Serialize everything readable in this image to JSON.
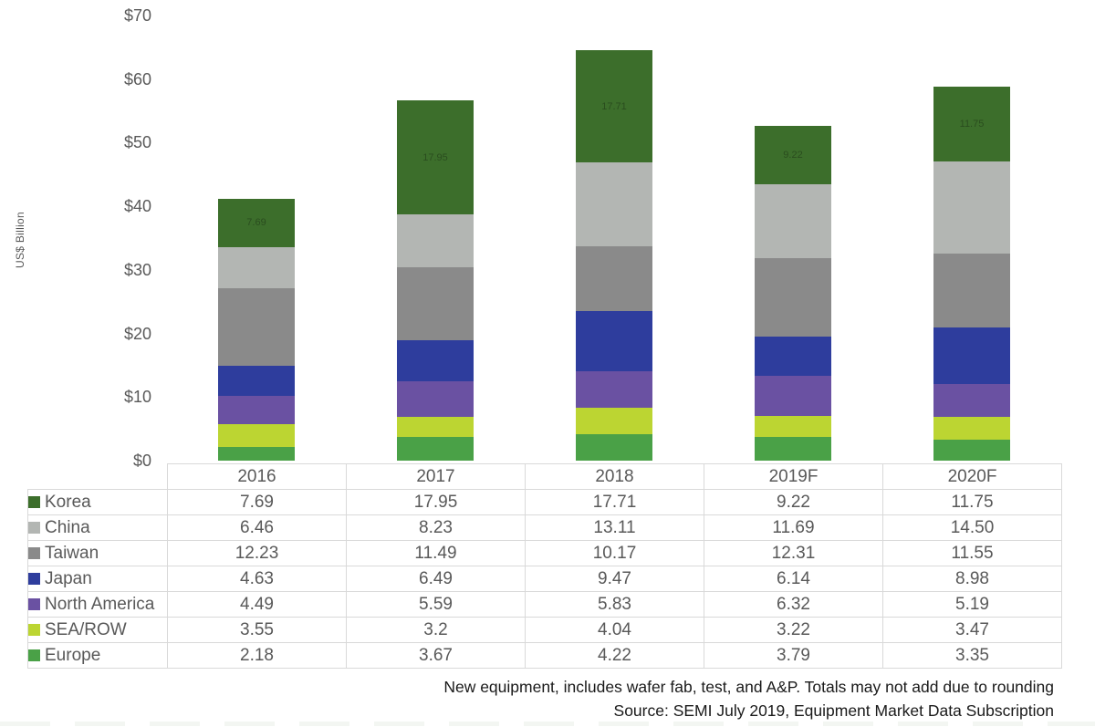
{
  "chart_data": {
    "type": "bar",
    "stacked": true,
    "title": "",
    "xlabel": "",
    "ylabel": "US$ Billion",
    "ylim": [
      0,
      70
    ],
    "grid": false,
    "ytick_values": [
      0,
      10,
      20,
      30,
      40,
      50,
      60,
      70
    ],
    "ytick_labels": [
      "$0",
      "$10",
      "$20",
      "$30",
      "$40",
      "$50",
      "$60",
      "$70"
    ],
    "categories": [
      "2016",
      "2017",
      "2018",
      "2019F",
      "2020F"
    ],
    "series": [
      {
        "name": "Korea",
        "color": "#3c6e2b",
        "values": [
          7.69,
          17.95,
          17.71,
          9.22,
          11.75
        ],
        "display": [
          "7.69",
          "17.95",
          "17.71",
          "9.22",
          "11.75"
        ],
        "show_bar_labels": true
      },
      {
        "name": "China",
        "color": "#b3b6b3",
        "values": [
          6.46,
          8.23,
          13.11,
          11.69,
          14.5
        ],
        "display": [
          "6.46",
          "8.23",
          "13.11",
          "11.69",
          "14.50"
        ],
        "show_bar_labels": false
      },
      {
        "name": "Taiwan",
        "color": "#8a8a8a",
        "values": [
          12.23,
          11.49,
          10.17,
          12.31,
          11.55
        ],
        "display": [
          "12.23",
          "11.49",
          "10.17",
          "12.31",
          "11.55"
        ],
        "show_bar_labels": false
      },
      {
        "name": "Japan",
        "color": "#2e3d9d",
        "values": [
          4.63,
          6.49,
          9.47,
          6.14,
          8.98
        ],
        "display": [
          "4.63",
          "6.49",
          "9.47",
          "6.14",
          "8.98"
        ],
        "show_bar_labels": false
      },
      {
        "name": "North America",
        "color": "#6a51a2",
        "values": [
          4.49,
          5.59,
          5.83,
          6.32,
          5.19
        ],
        "display": [
          "4.49",
          "5.59",
          "5.83",
          "6.32",
          "5.19"
        ],
        "show_bar_labels": false
      },
      {
        "name": "SEA/ROW",
        "color": "#bcd532",
        "values": [
          3.55,
          3.2,
          4.04,
          3.22,
          3.47
        ],
        "display": [
          "3.55",
          "3.2",
          "4.04",
          "3.22",
          "3.47"
        ],
        "show_bar_labels": false
      },
      {
        "name": "Europe",
        "color": "#4aa147",
        "values": [
          2.18,
          3.67,
          4.22,
          3.79,
          3.35
        ],
        "display": [
          "2.18",
          "3.67",
          "4.22",
          "3.79",
          "3.35"
        ],
        "show_bar_labels": false
      }
    ],
    "bar_label_color": "rgba(0,0,0,0.3)",
    "legend_position": "left column of data table",
    "axis_text_color": "#595959",
    "table_border_color": "#d9d9d9"
  },
  "footer": {
    "line1": "New equipment, includes wafer fab, test, and A&P. Totals may not add due to rounding",
    "line2": "Source: SEMI July 2019, Equipment Market Data Subscription"
  }
}
